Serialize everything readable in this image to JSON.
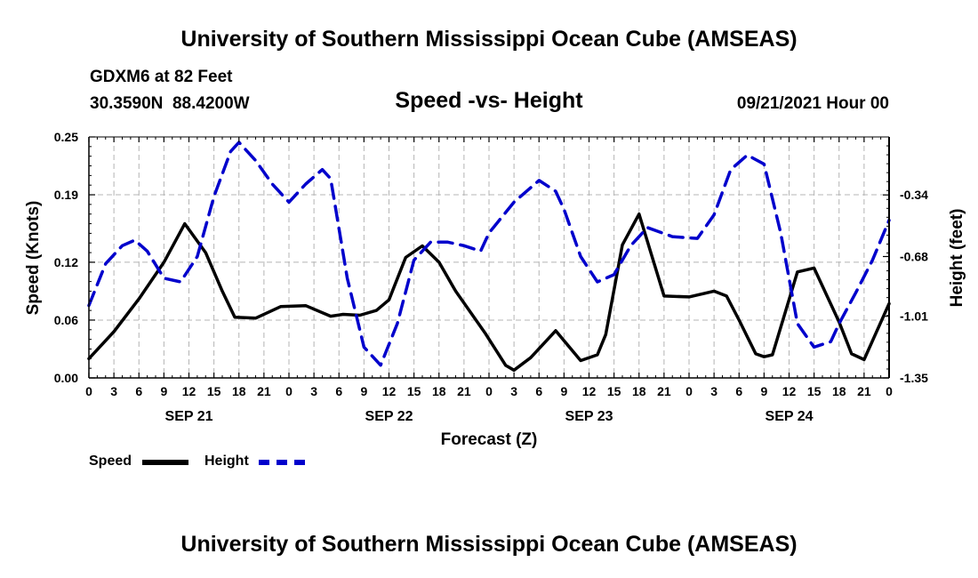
{
  "header": {
    "title": "University of Southern Mississippi Ocean Cube (AMSEAS)",
    "station": "GDXM6 at 82 Feet",
    "coordinates": "30.3590N  88.4200W",
    "chart_title": "Speed -vs- Height",
    "datetime": "09/21/2021 Hour 00"
  },
  "footer": {
    "title": "University of Southern Mississippi Ocean Cube (AMSEAS)"
  },
  "legend": {
    "speed_label": "Speed",
    "height_label": "Height"
  },
  "colors": {
    "speed": "#000000",
    "height": "#0000cc",
    "grid": "#b4b4b4"
  },
  "chart_data": {
    "type": "line",
    "title": "Speed -vs- Height",
    "xlabel": "Forecast (Z)",
    "ylabel": "Speed (Knots)",
    "y2label": "Height (feet)",
    "x_tick_labels": [
      "0",
      "3",
      "6",
      "9",
      "12",
      "15",
      "18",
      "21",
      "0",
      "3",
      "6",
      "9",
      "12",
      "15",
      "18",
      "21",
      "0",
      "3",
      "6",
      "9",
      "12",
      "15",
      "18",
      "21",
      "0",
      "3",
      "6",
      "9",
      "12",
      "15",
      "18",
      "21",
      "0"
    ],
    "date_labels": [
      {
        "label": "SEP 21",
        "hour": 12
      },
      {
        "label": "SEP 22",
        "hour": 36
      },
      {
        "label": "SEP 23",
        "hour": 60
      },
      {
        "label": "SEP 24",
        "hour": 84
      }
    ],
    "xlim": [
      0,
      96
    ],
    "ylim": [
      0,
      0.25
    ],
    "y_ticks": [
      0.0,
      0.06,
      0.12,
      0.19,
      0.25
    ],
    "y_tick_labels": [
      "0.00",
      "0.06",
      "0.12",
      "0.19",
      "0.25"
    ],
    "y2lim": [
      -1.35,
      -0.02
    ],
    "y2_ticks": [
      -1.35,
      -1.01,
      -0.68,
      -0.34
    ],
    "y2_tick_labels": [
      "-1.35",
      "-1.01",
      "-0.68",
      "-0.34"
    ],
    "series": [
      {
        "name": "Speed",
        "axis": "left",
        "style": "solid",
        "x": [
          0,
          3,
          6,
          9,
          11.5,
          14,
          16,
          17.5,
          20,
          23,
          26,
          29,
          30.5,
          32.5,
          34.5,
          36,
          38,
          40,
          42,
          44,
          47.5,
          50,
          51,
          53,
          56,
          59,
          61,
          62,
          64,
          66,
          69,
          72,
          75,
          76.5,
          78,
          80,
          81,
          82,
          85,
          87,
          90,
          91.5,
          93,
          96
        ],
        "y": [
          0.02,
          0.048,
          0.082,
          0.12,
          0.16,
          0.13,
          0.09,
          0.063,
          0.062,
          0.074,
          0.075,
          0.064,
          0.066,
          0.065,
          0.07,
          0.081,
          0.125,
          0.137,
          0.12,
          0.09,
          0.047,
          0.013,
          0.008,
          0.021,
          0.049,
          0.018,
          0.024,
          0.045,
          0.138,
          0.17,
          0.085,
          0.084,
          0.09,
          0.085,
          0.06,
          0.025,
          0.022,
          0.024,
          0.11,
          0.114,
          0.058,
          0.025,
          0.019,
          0.077
        ]
      },
      {
        "name": "Height",
        "axis": "right",
        "style": "dashed",
        "x": [
          0,
          2,
          4,
          5.5,
          7,
          9,
          11,
          13,
          15,
          17,
          18,
          20,
          22,
          24,
          26,
          28,
          29,
          31,
          33,
          35,
          37,
          39,
          41,
          43,
          45,
          47,
          48,
          51,
          54,
          56,
          57,
          59,
          61,
          63,
          65,
          67,
          70,
          73,
          75,
          77,
          79,
          81,
          83,
          85,
          87,
          89,
          90,
          92,
          94,
          96
        ],
        "y": [
          -0.95,
          -0.72,
          -0.62,
          -0.59,
          -0.65,
          -0.8,
          -0.82,
          -0.68,
          -0.35,
          -0.1,
          -0.05,
          -0.15,
          -0.28,
          -0.38,
          -0.28,
          -0.2,
          -0.25,
          -0.8,
          -1.18,
          -1.28,
          -1.05,
          -0.7,
          -0.6,
          -0.6,
          -0.62,
          -0.65,
          -0.55,
          -0.38,
          -0.26,
          -0.32,
          -0.42,
          -0.68,
          -0.82,
          -0.78,
          -0.62,
          -0.52,
          -0.57,
          -0.58,
          -0.45,
          -0.2,
          -0.12,
          -0.17,
          -0.55,
          -1.05,
          -1.18,
          -1.15,
          -1.05,
          -0.88,
          -0.7,
          -0.48
        ]
      }
    ]
  }
}
